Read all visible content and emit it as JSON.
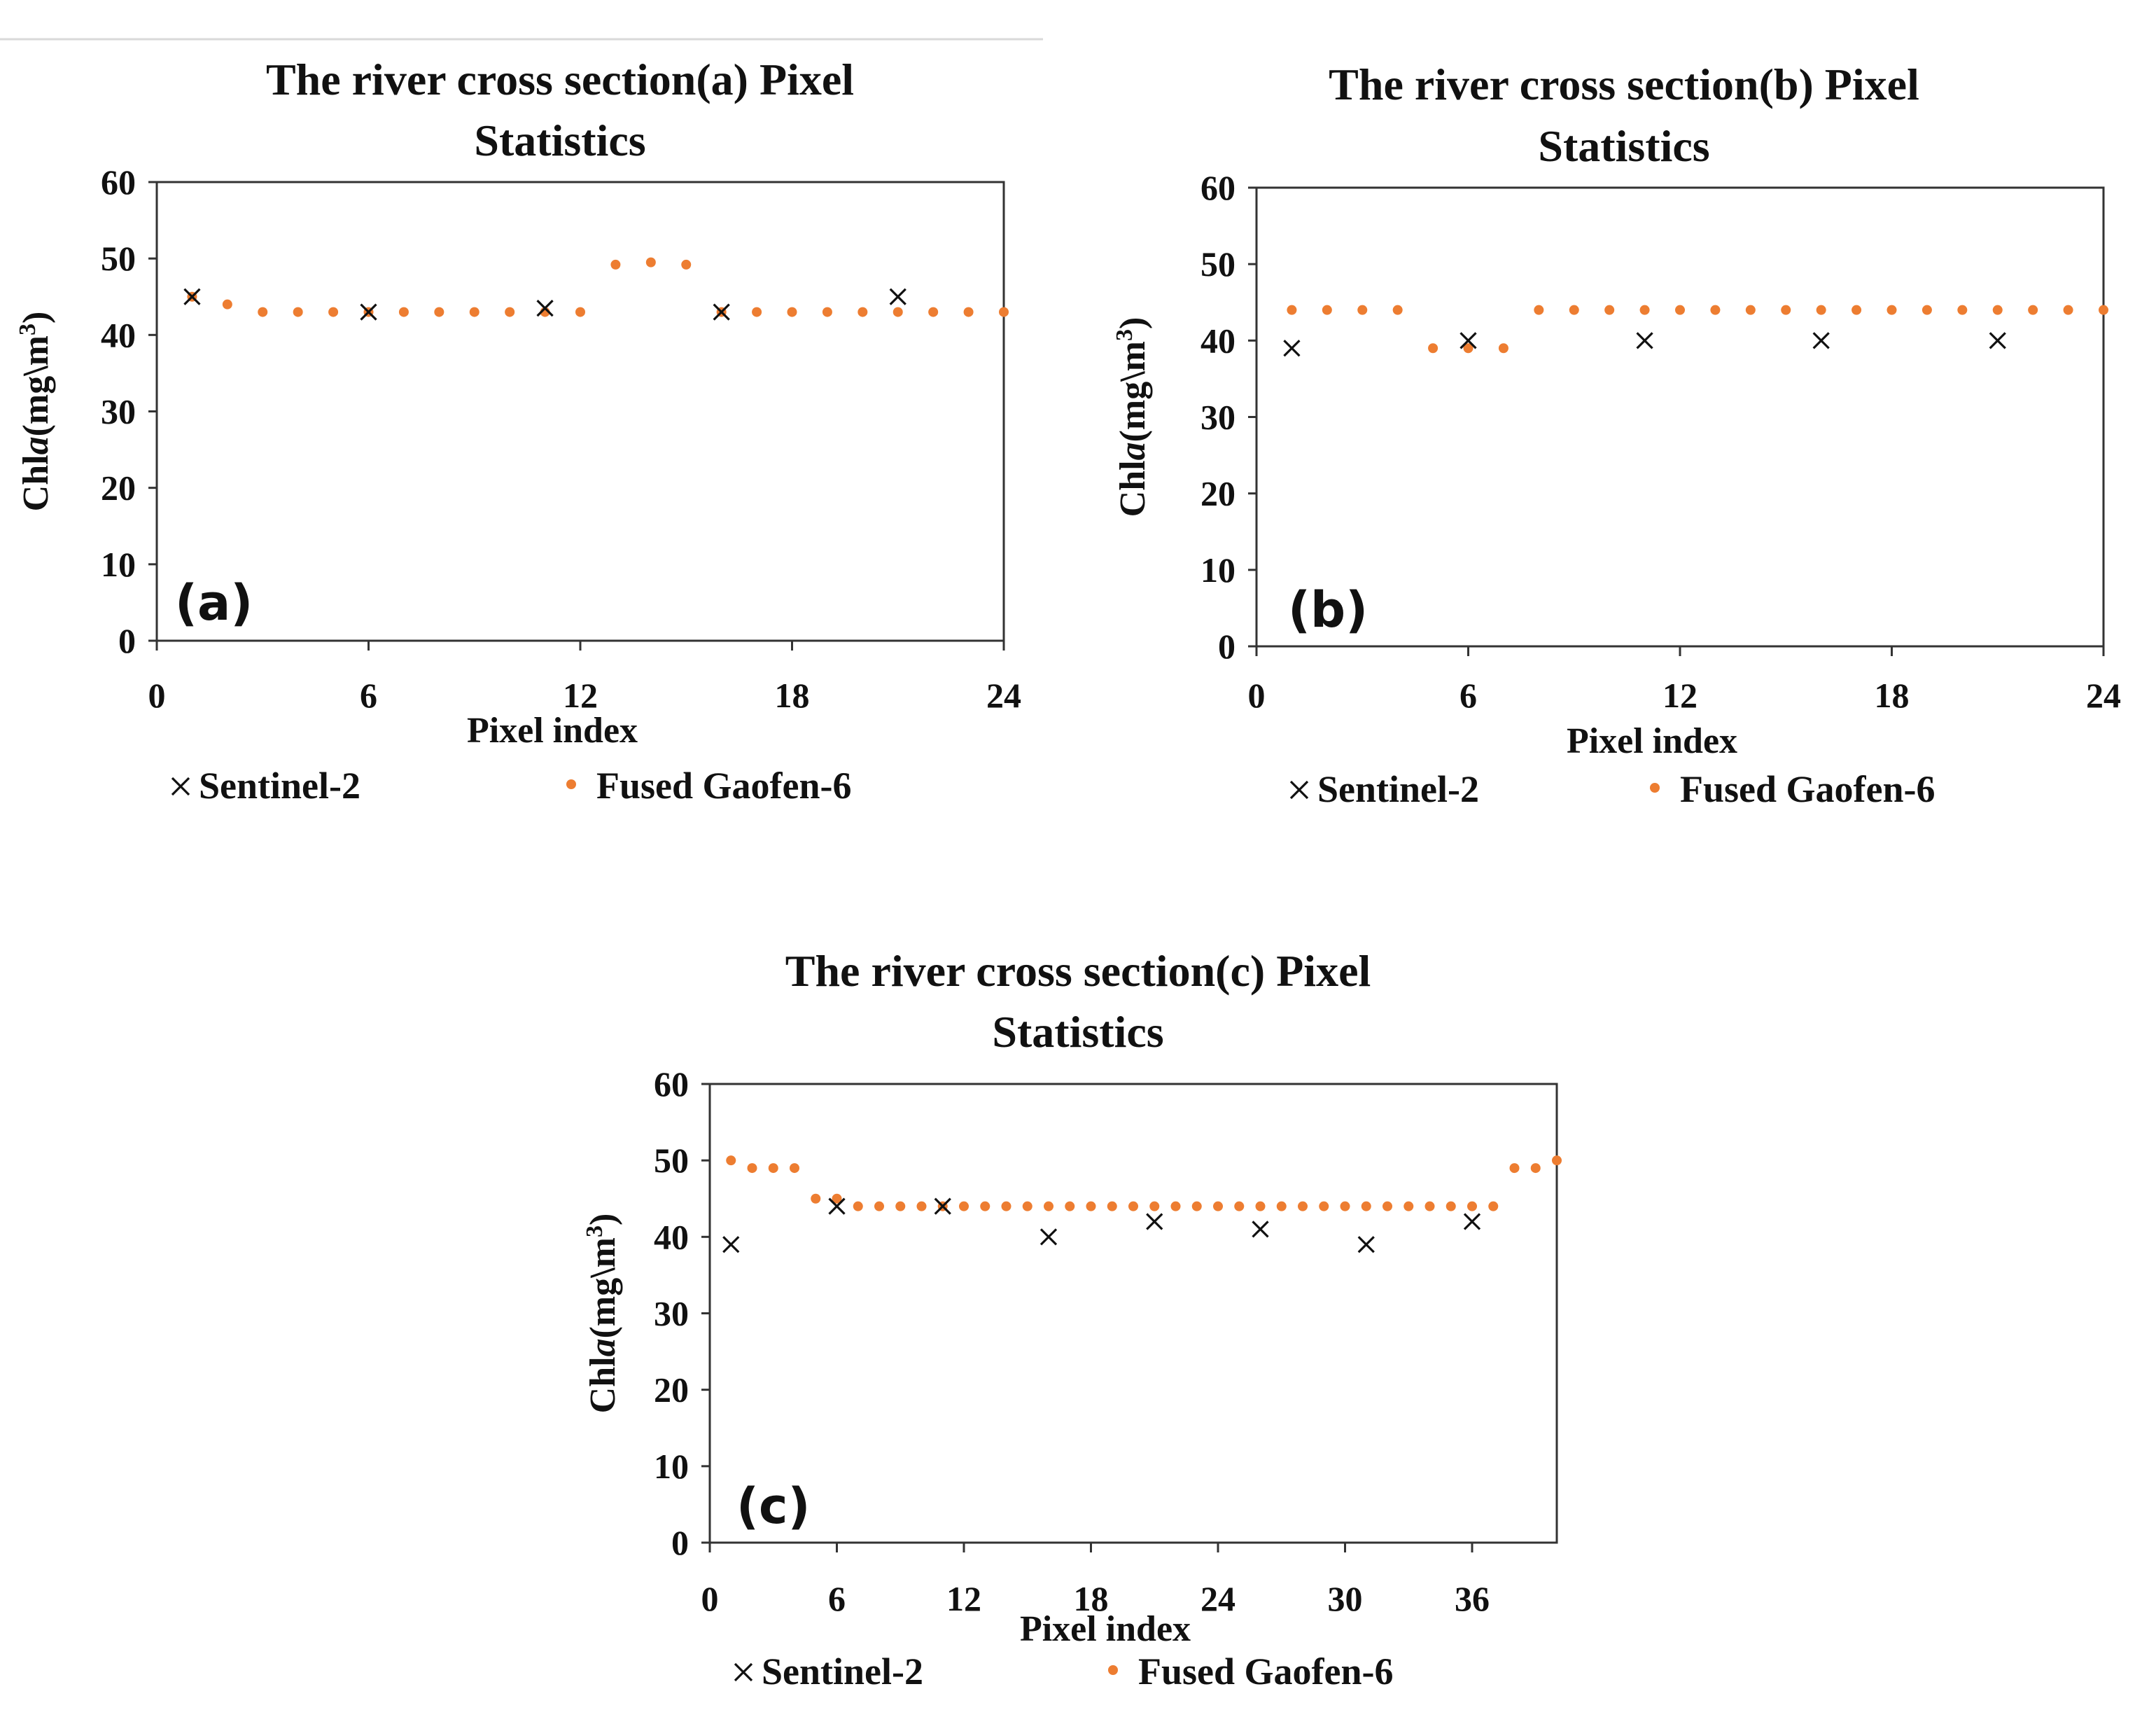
{
  "chart_data": [
    {
      "type": "scatter",
      "title": [
        "The river cross section(a) Pixel",
        "Statistics"
      ],
      "panel_label": "(a)",
      "xlabel": "Pixel index",
      "ylabel": {
        "prefix": "Chl",
        "italic": "a",
        "unit": "(mg\\m",
        "sup": "3",
        "close": ")"
      },
      "xlim": [
        0,
        24
      ],
      "ylim": [
        0,
        60
      ],
      "xticks": [
        "0",
        "6",
        "12",
        "18",
        "24"
      ],
      "yticks": [
        "0",
        "10",
        "20",
        "30",
        "40",
        "50",
        "60"
      ],
      "series": [
        {
          "name": "Sentinel-2",
          "marker": "x",
          "color": "#111111",
          "x": [
            1,
            6,
            11,
            16,
            21
          ],
          "y": [
            45,
            43,
            43.5,
            43,
            45
          ]
        },
        {
          "name": "Fused Gaofen-6",
          "marker": "dot",
          "color": "#ED7D31",
          "x": [
            1,
            2,
            3,
            4,
            5,
            6,
            7,
            8,
            9,
            10,
            11,
            12,
            13,
            14,
            15,
            16,
            17,
            18,
            19,
            20,
            21,
            22,
            23,
            24
          ],
          "y": [
            45,
            44,
            43,
            43,
            43,
            43,
            43,
            43,
            43,
            43,
            43,
            43,
            49.2,
            49.5,
            49.2,
            43,
            43,
            43,
            43,
            43,
            43,
            43,
            43,
            43
          ]
        }
      ],
      "legend": [
        {
          "symbol": "×",
          "label": "Sentinel-2"
        },
        {
          "symbol": "•",
          "label": "Fused Gaofen-6"
        }
      ]
    },
    {
      "type": "scatter",
      "title": [
        "The river cross  section(b) Pixel",
        "Statistics"
      ],
      "panel_label": "(b)",
      "xlabel": "Pixel index",
      "ylabel": {
        "prefix": "Chl",
        "italic": "a",
        "unit": "(mg\\m",
        "sup": "3",
        "close": ")"
      },
      "xlim": [
        0,
        24
      ],
      "ylim": [
        0,
        60
      ],
      "xticks": [
        "0",
        "6",
        "12",
        "18",
        "24"
      ],
      "yticks": [
        "0",
        "10",
        "20",
        "30",
        "40",
        "50",
        "60"
      ],
      "series": [
        {
          "name": "Sentinel-2",
          "marker": "x",
          "color": "#111111",
          "x": [
            1,
            6,
            11,
            16,
            21
          ],
          "y": [
            39,
            40,
            40,
            40,
            40
          ]
        },
        {
          "name": "Fused Gaofen-6",
          "marker": "dot",
          "color": "#ED7D31",
          "x": [
            1,
            2,
            3,
            4,
            5,
            6,
            7,
            8,
            9,
            10,
            11,
            12,
            13,
            14,
            15,
            16,
            17,
            18,
            19,
            20,
            21,
            22,
            23,
            24
          ],
          "y": [
            44,
            44,
            44,
            44,
            39,
            39,
            39,
            44,
            44,
            44,
            44,
            44,
            44,
            44,
            44,
            44,
            44,
            44,
            44,
            44,
            44,
            44,
            44,
            44
          ]
        }
      ],
      "legend": [
        {
          "symbol": "×",
          "label": "Sentinel-2"
        },
        {
          "symbol": "•",
          "label": "Fused Gaofen-6"
        }
      ]
    },
    {
      "type": "scatter",
      "title": [
        "The river cross  section(c) Pixel",
        "Statistics"
      ],
      "panel_label": "(c)",
      "xlabel": "Pixel index",
      "ylabel": {
        "prefix": "Chl",
        "italic": "a",
        "unit": "(mg\\m",
        "sup": "3",
        "close": ")"
      },
      "xlim": [
        0,
        40
      ],
      "ylim": [
        0,
        60
      ],
      "xticks": [
        "0",
        "6",
        "12",
        "18",
        "24",
        "30",
        "36"
      ],
      "yticks": [
        "0",
        "10",
        "20",
        "30",
        "40",
        "50",
        "60"
      ],
      "series": [
        {
          "name": "Sentinel-2",
          "marker": "x",
          "color": "#111111",
          "x": [
            1,
            6,
            11,
            16,
            21,
            26,
            31,
            36
          ],
          "y": [
            39,
            44,
            44,
            40,
            42,
            41,
            39,
            42
          ]
        },
        {
          "name": "Fused Gaofen-6",
          "marker": "dot",
          "color": "#ED7D31",
          "x": [
            1,
            2,
            3,
            4,
            5,
            6,
            7,
            8,
            9,
            10,
            11,
            12,
            13,
            14,
            15,
            16,
            17,
            18,
            19,
            20,
            21,
            22,
            23,
            24,
            25,
            26,
            27,
            28,
            29,
            30,
            31,
            32,
            33,
            34,
            35,
            36,
            37,
            38,
            39,
            40
          ],
          "y": [
            50,
            49,
            49,
            49,
            45,
            45,
            44,
            44,
            44,
            44,
            44,
            44,
            44,
            44,
            44,
            44,
            44,
            44,
            44,
            44,
            44,
            44,
            44,
            44,
            44,
            44,
            44,
            44,
            44,
            44,
            44,
            44,
            44,
            44,
            44,
            44,
            44,
            49,
            49,
            50
          ]
        }
      ],
      "legend": [
        {
          "symbol": "×",
          "label": "Sentinel-2"
        },
        {
          "symbol": "•",
          "label": "Fused Gaofen-6"
        }
      ]
    }
  ]
}
